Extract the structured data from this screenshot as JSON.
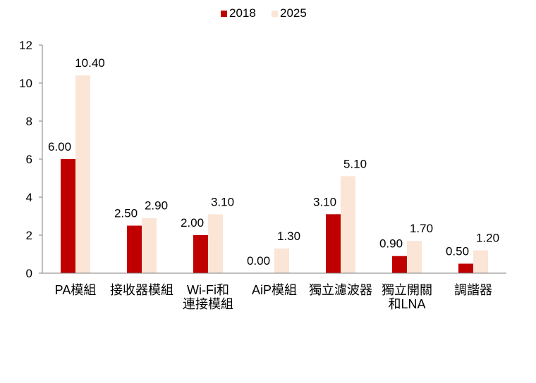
{
  "chart_data": {
    "type": "bar",
    "categories": [
      [
        "PA模組"
      ],
      [
        "接收器模組"
      ],
      [
        "Wi-Fi和",
        "連接模組"
      ],
      [
        "AiP模組"
      ],
      [
        "獨立濾波器"
      ],
      [
        "獨立開關",
        "和LNA"
      ],
      [
        "調諧器"
      ]
    ],
    "series": [
      {
        "name": "2018",
        "color": "#c00000",
        "values": [
          6.0,
          2.5,
          2.0,
          0.0,
          3.1,
          0.9,
          0.5
        ],
        "labels": [
          "6.00",
          "2.50",
          "2.00",
          "0.00",
          "3.10",
          "0.90",
          "0.50"
        ]
      },
      {
        "name": "2025",
        "color": "#fbe5d6",
        "values": [
          10.4,
          2.9,
          3.1,
          1.3,
          5.1,
          1.7,
          1.2
        ],
        "labels": [
          "10.40",
          "2.90",
          "3.10",
          "1.30",
          "5.10",
          "1.70",
          "1.20"
        ]
      }
    ],
    "yticks": [
      0,
      2,
      4,
      6,
      8,
      10,
      12
    ],
    "ylim": [
      0,
      12
    ],
    "grid": false,
    "legend_position": "top-center"
  }
}
